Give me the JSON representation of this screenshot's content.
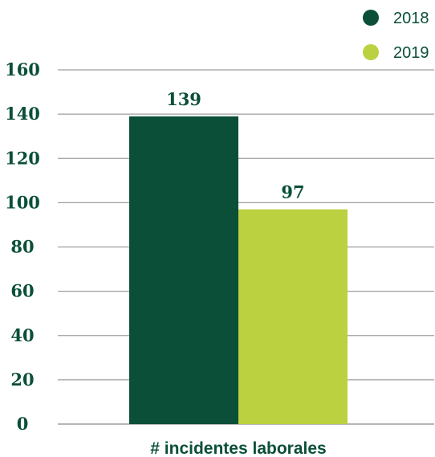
{
  "chart_data": {
    "type": "bar",
    "categories": [
      "# incidentes laborales"
    ],
    "series": [
      {
        "name": "2018",
        "values": [
          139
        ],
        "color": "#0b4f38"
      },
      {
        "name": "2019",
        "values": [
          97
        ],
        "color": "#bcd140"
      }
    ],
    "xlabel": "# incidentes laborales",
    "ylim": [
      0,
      160
    ],
    "yticks": [
      0,
      20,
      40,
      60,
      80,
      100,
      120,
      140,
      160
    ],
    "grid": true,
    "legend_position": "top-right"
  },
  "colors": {
    "text": "#0b4f38",
    "grid": "#9e9e9e"
  }
}
